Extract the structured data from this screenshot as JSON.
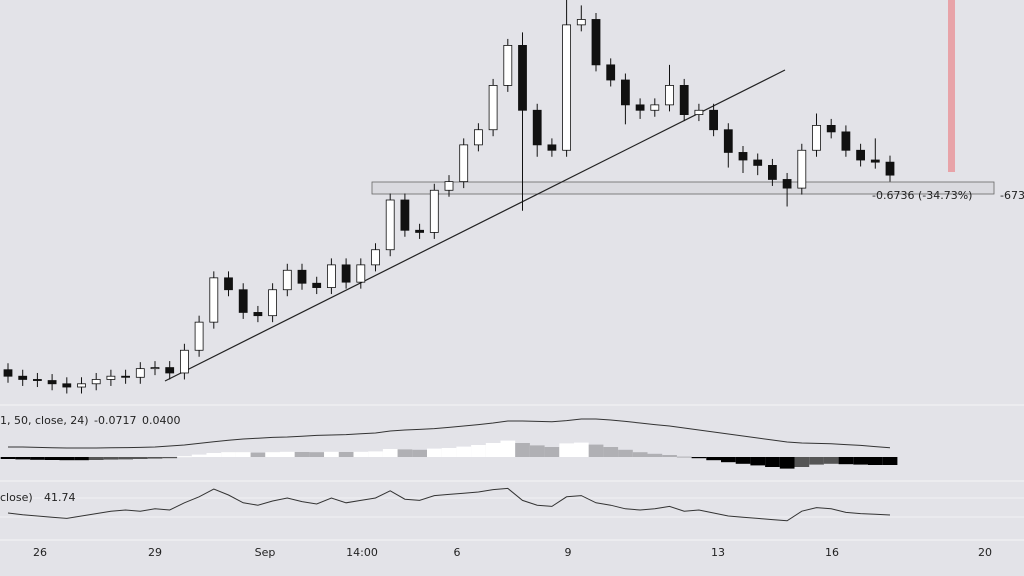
{
  "chart_data": {
    "type": "candlestick",
    "open": [
      0.508,
      0.502,
      0.499,
      0.498,
      0.495,
      0.492,
      0.495,
      0.499,
      0.502,
      0.501,
      0.509,
      0.51,
      0.505,
      0.526,
      0.552,
      0.593,
      0.582,
      0.561,
      0.558,
      0.582,
      0.6,
      0.588,
      0.584,
      0.605,
      0.589,
      0.605,
      0.619,
      0.665,
      0.637,
      0.635,
      0.674,
      0.682,
      0.716,
      0.73,
      0.771,
      0.808,
      0.748,
      0.716,
      0.711,
      0.827,
      0.832,
      0.79,
      0.776,
      0.753,
      0.748,
      0.753,
      0.771,
      0.744,
      0.748,
      0.73,
      0.709,
      0.702,
      0.697,
      0.684,
      0.676,
      0.711,
      0.734,
      0.728,
      0.711,
      0.702,
      0.7
    ],
    "high": [
      0.514,
      0.508,
      0.505,
      0.504,
      0.501,
      0.501,
      0.505,
      0.508,
      0.508,
      0.515,
      0.516,
      0.516,
      0.532,
      0.558,
      0.599,
      0.599,
      0.588,
      0.567,
      0.588,
      0.606,
      0.606,
      0.594,
      0.611,
      0.611,
      0.611,
      0.625,
      0.671,
      0.671,
      0.643,
      0.68,
      0.688,
      0.722,
      0.736,
      0.777,
      0.814,
      0.82,
      0.754,
      0.722,
      0.85,
      0.845,
      0.838,
      0.796,
      0.782,
      0.759,
      0.759,
      0.79,
      0.777,
      0.754,
      0.754,
      0.736,
      0.715,
      0.708,
      0.703,
      0.69,
      0.717,
      0.745,
      0.74,
      0.734,
      0.717,
      0.722,
      0.706
    ],
    "low": [
      0.496,
      0.493,
      0.492,
      0.489,
      0.486,
      0.486,
      0.489,
      0.493,
      0.495,
      0.495,
      0.503,
      0.499,
      0.499,
      0.52,
      0.546,
      0.576,
      0.555,
      0.552,
      0.552,
      0.576,
      0.582,
      0.578,
      0.578,
      0.583,
      0.583,
      0.599,
      0.613,
      0.631,
      0.629,
      0.629,
      0.668,
      0.676,
      0.71,
      0.724,
      0.765,
      0.655,
      0.705,
      0.705,
      0.705,
      0.821,
      0.784,
      0.77,
      0.735,
      0.74,
      0.742,
      0.747,
      0.738,
      0.738,
      0.724,
      0.695,
      0.69,
      0.688,
      0.678,
      0.659,
      0.67,
      0.705,
      0.722,
      0.705,
      0.696,
      0.694,
      0.682
    ],
    "close": [
      0.502,
      0.499,
      0.498,
      0.495,
      0.492,
      0.495,
      0.499,
      0.502,
      0.501,
      0.509,
      0.51,
      0.505,
      0.526,
      0.552,
      0.593,
      0.582,
      0.561,
      0.558,
      0.582,
      0.6,
      0.588,
      0.584,
      0.605,
      0.589,
      0.605,
      0.619,
      0.665,
      0.637,
      0.635,
      0.674,
      0.682,
      0.716,
      0.73,
      0.771,
      0.808,
      0.748,
      0.716,
      0.711,
      0.827,
      0.832,
      0.79,
      0.776,
      0.753,
      0.748,
      0.753,
      0.771,
      0.744,
      0.748,
      0.73,
      0.709,
      0.702,
      0.697,
      0.684,
      0.676,
      0.711,
      0.734,
      0.728,
      0.711,
      0.702,
      0.7,
      0.688
    ],
    "ylim": [
      0.48,
      0.85
    ],
    "box_label": "-0.6736 (-34.73%)",
    "box_label_cut": "-673",
    "time_labels": [
      "26",
      "29",
      "Sep",
      "14:00",
      "6",
      "9",
      "13",
      "16",
      "20"
    ],
    "macd": {
      "label": "1, 50, close, 24)",
      "value_1": "-0.0717",
      "value_2": "0.0400",
      "histogram": [
        -0.01,
        -0.012,
        -0.014,
        -0.015,
        -0.016,
        -0.016,
        -0.015,
        -0.013,
        -0.012,
        -0.01,
        -0.008,
        -0.006,
        0.004,
        0.012,
        0.02,
        0.024,
        0.024,
        0.022,
        0.024,
        0.026,
        0.025,
        0.024,
        0.026,
        0.025,
        0.026,
        0.028,
        0.04,
        0.038,
        0.036,
        0.042,
        0.045,
        0.052,
        0.06,
        0.07,
        0.082,
        0.07,
        0.058,
        0.05,
        0.068,
        0.072,
        0.062,
        0.05,
        0.036,
        0.024,
        0.016,
        0.01,
        0.002,
        -0.006,
        -0.016,
        -0.026,
        -0.034,
        -0.042,
        -0.05,
        -0.058,
        -0.05,
        -0.038,
        -0.034,
        -0.036,
        -0.038,
        -0.04,
        -0.04
      ],
      "line": [
        0.05,
        0.05,
        0.048,
        0.046,
        0.045,
        0.045,
        0.045,
        0.046,
        0.047,
        0.048,
        0.05,
        0.055,
        0.06,
        0.068,
        0.076,
        0.084,
        0.09,
        0.094,
        0.098,
        0.1,
        0.104,
        0.108,
        0.11,
        0.112,
        0.116,
        0.12,
        0.13,
        0.135,
        0.138,
        0.142,
        0.148,
        0.155,
        0.162,
        0.17,
        0.18,
        0.18,
        0.178,
        0.176,
        0.182,
        0.19,
        0.19,
        0.185,
        0.178,
        0.17,
        0.162,
        0.155,
        0.145,
        0.135,
        0.125,
        0.115,
        0.105,
        0.095,
        0.085,
        0.075,
        0.07,
        0.068,
        0.066,
        0.062,
        0.058,
        0.052,
        0.046
      ]
    },
    "rsi": {
      "label": "close)",
      "value": 41.74,
      "values": [
        45,
        42,
        40,
        38,
        36,
        40,
        44,
        48,
        50,
        48,
        52,
        50,
        62,
        72,
        85,
        75,
        62,
        58,
        65,
        70,
        64,
        60,
        70,
        62,
        66,
        70,
        82,
        68,
        66,
        74,
        76,
        78,
        80,
        84,
        86,
        66,
        58,
        56,
        72,
        74,
        62,
        58,
        52,
        50,
        52,
        56,
        48,
        50,
        45,
        40,
        38,
        36,
        34,
        32,
        48,
        54,
        52,
        46,
        44,
        43,
        41.74
      ]
    }
  }
}
